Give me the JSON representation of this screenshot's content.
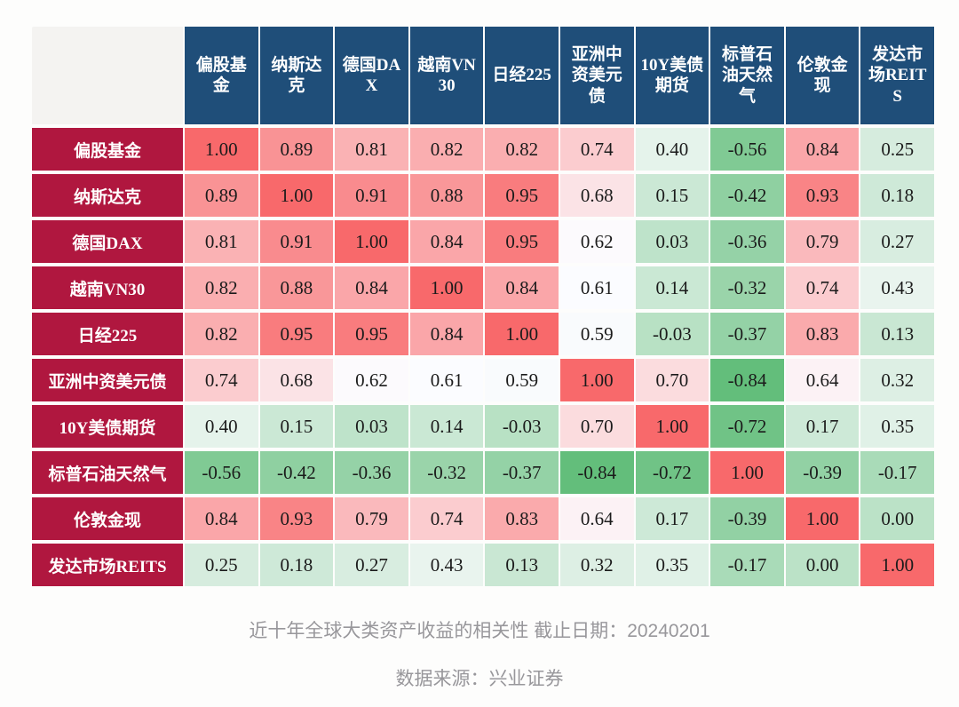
{
  "page": {
    "caption": "近十年全球大类资产收益的相关性 截止日期：20240201",
    "source": "数据来源：兴业证券"
  },
  "chart_data": {
    "type": "heatmap",
    "title": "近十年全球大类资产收益的相关性",
    "as_of_label": "截止日期：20240201",
    "source_label": "数据来源：兴业证券",
    "categories": [
      "偏股基金",
      "纳斯达克",
      "德国DAX",
      "越南VN30",
      "日经225",
      "亚洲中资美元债",
      "10Y美债期货",
      "标普石油天然气",
      "伦敦金现",
      "发达市场REITS"
    ],
    "matrix": [
      [
        1.0,
        0.89,
        0.81,
        0.82,
        0.82,
        0.74,
        0.4,
        -0.56,
        0.84,
        0.25
      ],
      [
        0.89,
        1.0,
        0.91,
        0.88,
        0.95,
        0.68,
        0.15,
        -0.42,
        0.93,
        0.18
      ],
      [
        0.81,
        0.91,
        1.0,
        0.84,
        0.95,
        0.62,
        0.03,
        -0.36,
        0.79,
        0.27
      ],
      [
        0.82,
        0.88,
        0.84,
        1.0,
        0.84,
        0.61,
        0.14,
        -0.32,
        0.74,
        0.43
      ],
      [
        0.82,
        0.95,
        0.95,
        0.84,
        1.0,
        0.59,
        -0.03,
        -0.37,
        0.83,
        0.13
      ],
      [
        0.74,
        0.68,
        0.62,
        0.61,
        0.59,
        1.0,
        0.7,
        -0.84,
        0.64,
        0.32
      ],
      [
        0.4,
        0.15,
        0.03,
        0.14,
        -0.03,
        0.7,
        1.0,
        -0.72,
        0.17,
        0.35
      ],
      [
        -0.56,
        -0.42,
        -0.36,
        -0.32,
        -0.37,
        -0.84,
        -0.72,
        1.0,
        -0.39,
        -0.17
      ],
      [
        0.84,
        0.93,
        0.79,
        0.74,
        0.83,
        0.64,
        0.17,
        -0.39,
        1.0,
        0.0
      ],
      [
        0.25,
        0.18,
        0.27,
        0.43,
        0.13,
        0.32,
        0.35,
        -0.17,
        0.0,
        1.0
      ]
    ],
    "value_decimals": 2,
    "colorscale": {
      "min_value": -0.84,
      "mid_value": 0.615,
      "max_value": 1.0,
      "min_color": "#63BE7B",
      "mid_color": "#FCFCFF",
      "max_color": "#F8696B"
    },
    "colors": {
      "column_header_bg": "#1F4E79",
      "row_header_bg": "#B0173F",
      "corner_bg": "#F4F3F1",
      "header_text": "#FFFFFF",
      "cell_text": "#1B1B1B",
      "caption_text": "#98979B",
      "grid_gap": "#FFFFFF"
    },
    "legend_position": "none",
    "grid": true
  }
}
